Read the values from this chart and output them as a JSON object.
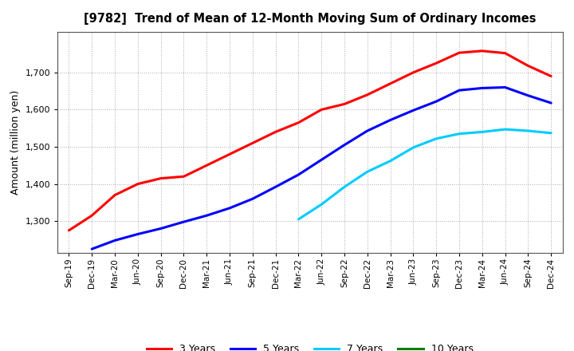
{
  "title": "[9782]  Trend of Mean of 12-Month Moving Sum of Ordinary Incomes",
  "ylabel": "Amount (million yen)",
  "background_color": "#ffffff",
  "plot_background": "#ffffff",
  "grid_color": "#aaaaaa",
  "ylim": [
    1215,
    1810
  ],
  "yticks": [
    1300,
    1400,
    1500,
    1600,
    1700
  ],
  "series": [
    {
      "label": "3 Years",
      "color": "#ff0000",
      "x": [
        "Sep-19",
        "Dec-19",
        "Mar-20",
        "Jun-20",
        "Sep-20",
        "Dec-20",
        "Mar-21",
        "Jun-21",
        "Sep-21",
        "Dec-21",
        "Mar-22",
        "Jun-22",
        "Sep-22",
        "Dec-22",
        "Mar-23",
        "Jun-23",
        "Sep-23",
        "Dec-23",
        "Mar-24",
        "Jun-24",
        "Sep-24",
        "Dec-24"
      ],
      "y": [
        1275,
        1315,
        1370,
        1400,
        1415,
        1420,
        1450,
        1480,
        1510,
        1540,
        1565,
        1600,
        1615,
        1640,
        1670,
        1700,
        1725,
        1753,
        1758,
        1752,
        1718,
        1690
      ]
    },
    {
      "label": "5 Years",
      "color": "#0000ff",
      "x": [
        "Dec-19",
        "Mar-20",
        "Jun-20",
        "Sep-20",
        "Dec-20",
        "Mar-21",
        "Jun-21",
        "Sep-21",
        "Dec-21",
        "Mar-22",
        "Jun-22",
        "Sep-22",
        "Dec-22",
        "Mar-23",
        "Jun-23",
        "Sep-23",
        "Dec-23",
        "Mar-24",
        "Jun-24",
        "Sep-24",
        "Dec-24"
      ],
      "y": [
        1225,
        1248,
        1265,
        1280,
        1298,
        1315,
        1335,
        1360,
        1392,
        1425,
        1465,
        1505,
        1543,
        1572,
        1598,
        1622,
        1652,
        1658,
        1660,
        1638,
        1618
      ]
    },
    {
      "label": "7 Years",
      "color": "#00ccff",
      "x": [
        "Mar-22",
        "Jun-22",
        "Sep-22",
        "Dec-22",
        "Mar-23",
        "Jun-23",
        "Sep-23",
        "Dec-23",
        "Mar-24",
        "Jun-24",
        "Sep-24",
        "Dec-24"
      ],
      "y": [
        1305,
        1345,
        1392,
        1433,
        1462,
        1498,
        1522,
        1535,
        1540,
        1547,
        1543,
        1537
      ]
    },
    {
      "label": "10 Years",
      "color": "#008000",
      "x": [],
      "y": []
    }
  ],
  "xticks": [
    "Sep-19",
    "Dec-19",
    "Mar-20",
    "Jun-20",
    "Sep-20",
    "Dec-20",
    "Mar-21",
    "Jun-21",
    "Sep-21",
    "Dec-21",
    "Mar-22",
    "Jun-22",
    "Sep-22",
    "Dec-22",
    "Mar-23",
    "Jun-23",
    "Sep-23",
    "Dec-23",
    "Mar-24",
    "Jun-24",
    "Sep-24",
    "Dec-24"
  ],
  "legend_colors": [
    "#ff0000",
    "#0000ff",
    "#00ccff",
    "#008000"
  ],
  "legend_labels": [
    "3 Years",
    "5 Years",
    "7 Years",
    "10 Years"
  ],
  "title_fontsize": 10.5,
  "linewidth": 2.2
}
